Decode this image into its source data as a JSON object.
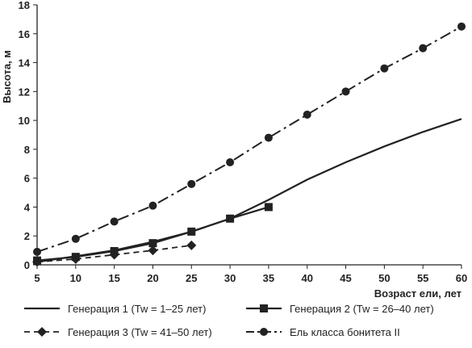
{
  "chart_data": {
    "type": "line",
    "title": "",
    "xlabel": "Возраст ели, лет",
    "ylabel": "Высота, м",
    "xlim": [
      5,
      60
    ],
    "ylim": [
      0,
      18
    ],
    "xticks": [
      5,
      10,
      15,
      20,
      25,
      30,
      35,
      40,
      45,
      50,
      55,
      60
    ],
    "yticks": [
      0,
      2,
      4,
      6,
      8,
      10,
      12,
      14,
      16,
      18
    ],
    "grid": false,
    "legend_position": "bottom",
    "series": [
      {
        "name": "Генерация 1 (Tw = 1–25 лет)",
        "style": "solid",
        "marker": "none",
        "x": [
          5,
          10,
          15,
          20,
          25,
          30,
          35,
          40,
          45,
          50,
          55,
          60
        ],
        "y": [
          0.2,
          0.6,
          1.0,
          1.6,
          2.3,
          3.2,
          4.5,
          5.9,
          7.1,
          8.2,
          9.2,
          10.1
        ]
      },
      {
        "name": "Генерация 2 (Tw = 26–40 лет)",
        "style": "solid",
        "marker": "square",
        "x": [
          5,
          10,
          15,
          20,
          25,
          30,
          35
        ],
        "y": [
          0.3,
          0.55,
          0.95,
          1.5,
          2.3,
          3.2,
          4.0
        ]
      },
      {
        "name": "Генерация 3 (Tw = 41–50 лет)",
        "style": "dashed",
        "marker": "diamond",
        "x": [
          5,
          10,
          15,
          20,
          25
        ],
        "y": [
          0.2,
          0.4,
          0.7,
          1.0,
          1.35
        ]
      },
      {
        "name": "Ель класса бонитета II",
        "style": "dashdot",
        "marker": "circle",
        "x": [
          5,
          10,
          15,
          20,
          25,
          30,
          35,
          40,
          45,
          50,
          55,
          60
        ],
        "y": [
          0.9,
          1.8,
          3.0,
          4.1,
          5.6,
          7.1,
          8.8,
          10.4,
          12.0,
          13.6,
          15.0,
          16.5
        ]
      }
    ]
  }
}
